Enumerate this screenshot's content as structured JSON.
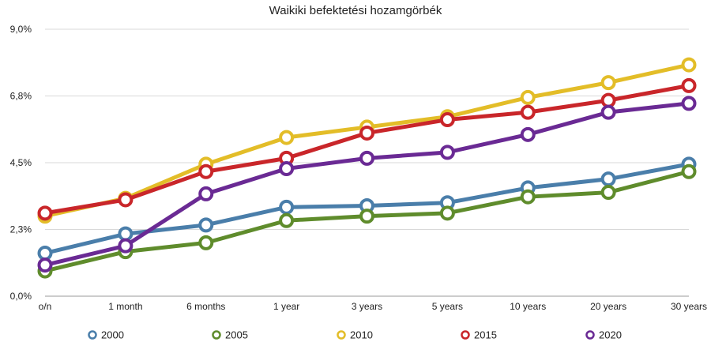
{
  "chart_data": {
    "type": "line",
    "title": "Waikiki befektetési hozamgörbék",
    "xlabel": "",
    "ylabel": "",
    "categories": [
      "o/n",
      "1 month",
      "6 months",
      "1 year",
      "3 years",
      "5 years",
      "10 years",
      "20 years",
      "30 years"
    ],
    "yticks": [
      "0,0%",
      "2,3%",
      "4,5%",
      "6,8%",
      "9,0%"
    ],
    "ylim": [
      0,
      9.0
    ],
    "grid": true,
    "legend": "bottom",
    "series": [
      {
        "name": "2000",
        "color": "#4a7eaa",
        "values": [
          1.45,
          2.1,
          2.4,
          3.0,
          3.05,
          3.15,
          3.65,
          3.95,
          4.45
        ]
      },
      {
        "name": "2005",
        "color": "#5f8c2c",
        "values": [
          0.85,
          1.5,
          1.8,
          2.55,
          2.7,
          2.8,
          3.35,
          3.5,
          4.2
        ]
      },
      {
        "name": "2010",
        "color": "#e3bd28",
        "values": [
          2.7,
          3.3,
          4.45,
          5.35,
          5.7,
          6.05,
          6.7,
          7.2,
          7.8
        ]
      },
      {
        "name": "2015",
        "color": "#c9262a",
        "values": [
          2.8,
          3.25,
          4.2,
          4.65,
          5.5,
          5.95,
          6.2,
          6.6,
          7.1
        ]
      },
      {
        "name": "2020",
        "color": "#6a2a94",
        "values": [
          1.05,
          1.7,
          3.45,
          4.3,
          4.65,
          4.85,
          5.45,
          6.2,
          6.5
        ]
      }
    ]
  }
}
